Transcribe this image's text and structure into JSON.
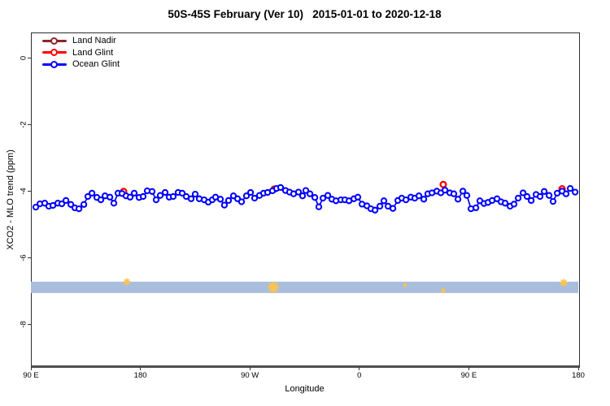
{
  "chart": {
    "title": "50S-45S February (Ver 10)   2015-01-01 to 2020-12-18",
    "xlabel": "Longitude",
    "ylabel": "XCO2 - MLO trend (ppm)"
  },
  "chart_data": {
    "type": "line",
    "title": "50S-45S February (Ver 10)   2015-01-01 to 2020-12-18",
    "xlabel": "Longitude",
    "ylabel": "XCO2 - MLO trend (ppm)",
    "x_axis": {
      "unit": "degrees eastward along axis starting at 90 E",
      "range": [
        0,
        450
      ],
      "ticks": [
        {
          "pos": 0,
          "label": "90 E"
        },
        {
          "pos": 90,
          "label": "180"
        },
        {
          "pos": 180,
          "label": "90 W"
        },
        {
          "pos": 270,
          "label": "0"
        },
        {
          "pos": 360,
          "label": "90 E"
        },
        {
          "pos": 450,
          "label": "180"
        }
      ]
    },
    "y_axis": {
      "range": [
        -9.3,
        0.76
      ],
      "ticks": [
        {
          "pos": 0,
          "label": "0"
        },
        {
          "pos": -2,
          "label": "-2"
        },
        {
          "pos": -4,
          "label": "-4"
        },
        {
          "pos": -6,
          "label": "-6"
        },
        {
          "pos": -8,
          "label": "-8"
        }
      ]
    },
    "band": {
      "v_top": -6.73,
      "v_bottom": -7.07,
      "color": "#A9BEDC"
    },
    "flag_marks": {
      "color": "#FFC34D",
      "points": [
        [
          78.9,
          -6.73,
          7
        ],
        [
          199.3,
          -6.9,
          12
        ],
        [
          307.6,
          -6.83,
          3
        ],
        [
          339.0,
          -7.0,
          4
        ],
        [
          438.0,
          -6.76,
          8
        ]
      ]
    },
    "legend_position": "top-left",
    "series": [
      {
        "name": "Land Nadir",
        "color": "#8B2525",
        "points": []
      },
      {
        "name": "Land Glint",
        "color": "#FF0000",
        "points": [
          [
            76.2,
            -4.02
          ],
          [
            200.0,
            -3.95
          ],
          [
            339.0,
            -3.81
          ],
          [
            436.7,
            -3.94
          ]
        ]
      },
      {
        "name": "Ocean Glint",
        "color": "#0000FF",
        "points": [
          [
            4.0,
            -4.49
          ],
          [
            7.4,
            -4.39
          ],
          [
            11.4,
            -4.37
          ],
          [
            14.7,
            -4.46
          ],
          [
            18.1,
            -4.44
          ],
          [
            22.1,
            -4.37
          ],
          [
            25.4,
            -4.39
          ],
          [
            28.8,
            -4.29
          ],
          [
            32.8,
            -4.41
          ],
          [
            36.1,
            -4.51
          ],
          [
            39.5,
            -4.54
          ],
          [
            43.5,
            -4.41
          ],
          [
            46.8,
            -4.17
          ],
          [
            50.2,
            -4.07
          ],
          [
            54.2,
            -4.2
          ],
          [
            57.5,
            -4.27
          ],
          [
            60.9,
            -4.15
          ],
          [
            64.9,
            -4.19
          ],
          [
            68.2,
            -4.37
          ],
          [
            71.6,
            -4.07
          ],
          [
            74.9,
            -4.08
          ],
          [
            78.2,
            -4.15
          ],
          [
            81.6,
            -4.19
          ],
          [
            84.9,
            -4.07
          ],
          [
            88.9,
            -4.2
          ],
          [
            92.3,
            -4.17
          ],
          [
            95.6,
            -4.0
          ],
          [
            99.6,
            -4.02
          ],
          [
            103.0,
            -4.27
          ],
          [
            106.3,
            -4.14
          ],
          [
            110.3,
            -4.05
          ],
          [
            113.7,
            -4.19
          ],
          [
            117.0,
            -4.17
          ],
          [
            121.0,
            -4.05
          ],
          [
            124.4,
            -4.07
          ],
          [
            127.7,
            -4.17
          ],
          [
            131.7,
            -4.24
          ],
          [
            135.1,
            -4.1
          ],
          [
            138.4,
            -4.24
          ],
          [
            142.4,
            -4.27
          ],
          [
            145.8,
            -4.34
          ],
          [
            149.1,
            -4.27
          ],
          [
            151.8,
            -4.19
          ],
          [
            155.8,
            -4.25
          ],
          [
            159.1,
            -4.43
          ],
          [
            162.5,
            -4.29
          ],
          [
            166.5,
            -4.15
          ],
          [
            169.9,
            -4.24
          ],
          [
            173.2,
            -4.33
          ],
          [
            177.2,
            -4.15
          ],
          [
            180.6,
            -4.05
          ],
          [
            183.9,
            -4.22
          ],
          [
            187.9,
            -4.14
          ],
          [
            191.2,
            -4.07
          ],
          [
            194.6,
            -4.05
          ],
          [
            198.6,
            -4.0
          ],
          [
            201.9,
            -3.93
          ],
          [
            205.3,
            -3.9
          ],
          [
            209.3,
            -3.99
          ],
          [
            212.6,
            -4.04
          ],
          [
            216.0,
            -4.09
          ],
          [
            220.0,
            -4.04
          ],
          [
            223.3,
            -4.15
          ],
          [
            226.0,
            -3.99
          ],
          [
            229.4,
            -4.09
          ],
          [
            233.4,
            -4.2
          ],
          [
            236.7,
            -4.48
          ],
          [
            240.1,
            -4.22
          ],
          [
            244.1,
            -4.14
          ],
          [
            247.4,
            -4.25
          ],
          [
            250.8,
            -4.3
          ],
          [
            254.8,
            -4.27
          ],
          [
            258.1,
            -4.27
          ],
          [
            261.5,
            -4.3
          ],
          [
            265.5,
            -4.24
          ],
          [
            268.8,
            -4.19
          ],
          [
            272.2,
            -4.4
          ],
          [
            276.2,
            -4.45
          ],
          [
            279.5,
            -4.54
          ],
          [
            282.9,
            -4.58
          ],
          [
            286.9,
            -4.46
          ],
          [
            290.2,
            -4.3
          ],
          [
            293.6,
            -4.46
          ],
          [
            297.6,
            -4.53
          ],
          [
            301.6,
            -4.29
          ],
          [
            304.9,
            -4.22
          ],
          [
            308.3,
            -4.27
          ],
          [
            312.3,
            -4.19
          ],
          [
            315.6,
            -4.22
          ],
          [
            319.0,
            -4.15
          ],
          [
            323.0,
            -4.25
          ],
          [
            326.3,
            -4.09
          ],
          [
            329.7,
            -4.06
          ],
          [
            333.7,
            -4.01
          ],
          [
            337.0,
            -4.06
          ],
          [
            340.4,
            -3.98
          ],
          [
            344.4,
            -4.06
          ],
          [
            347.7,
            -4.09
          ],
          [
            351.1,
            -4.25
          ],
          [
            355.1,
            -4.01
          ],
          [
            358.4,
            -4.14
          ],
          [
            361.8,
            -4.54
          ],
          [
            365.8,
            -4.51
          ],
          [
            369.1,
            -4.3
          ],
          [
            372.5,
            -4.38
          ],
          [
            375.8,
            -4.35
          ],
          [
            379.2,
            -4.29
          ],
          [
            383.2,
            -4.24
          ],
          [
            386.5,
            -4.33
          ],
          [
            389.9,
            -4.37
          ],
          [
            393.9,
            -4.46
          ],
          [
            397.2,
            -4.4
          ],
          [
            400.6,
            -4.22
          ],
          [
            404.6,
            -4.06
          ],
          [
            407.9,
            -4.17
          ],
          [
            411.3,
            -4.29
          ],
          [
            415.3,
            -4.11
          ],
          [
            418.6,
            -4.17
          ],
          [
            422.0,
            -4.02
          ],
          [
            426.0,
            -4.14
          ],
          [
            429.3,
            -4.32
          ],
          [
            432.7,
            -4.07
          ],
          [
            436.7,
            -4.01
          ],
          [
            440.0,
            -4.09
          ],
          [
            443.4,
            -3.93
          ],
          [
            447.4,
            -4.04
          ]
        ]
      }
    ]
  }
}
